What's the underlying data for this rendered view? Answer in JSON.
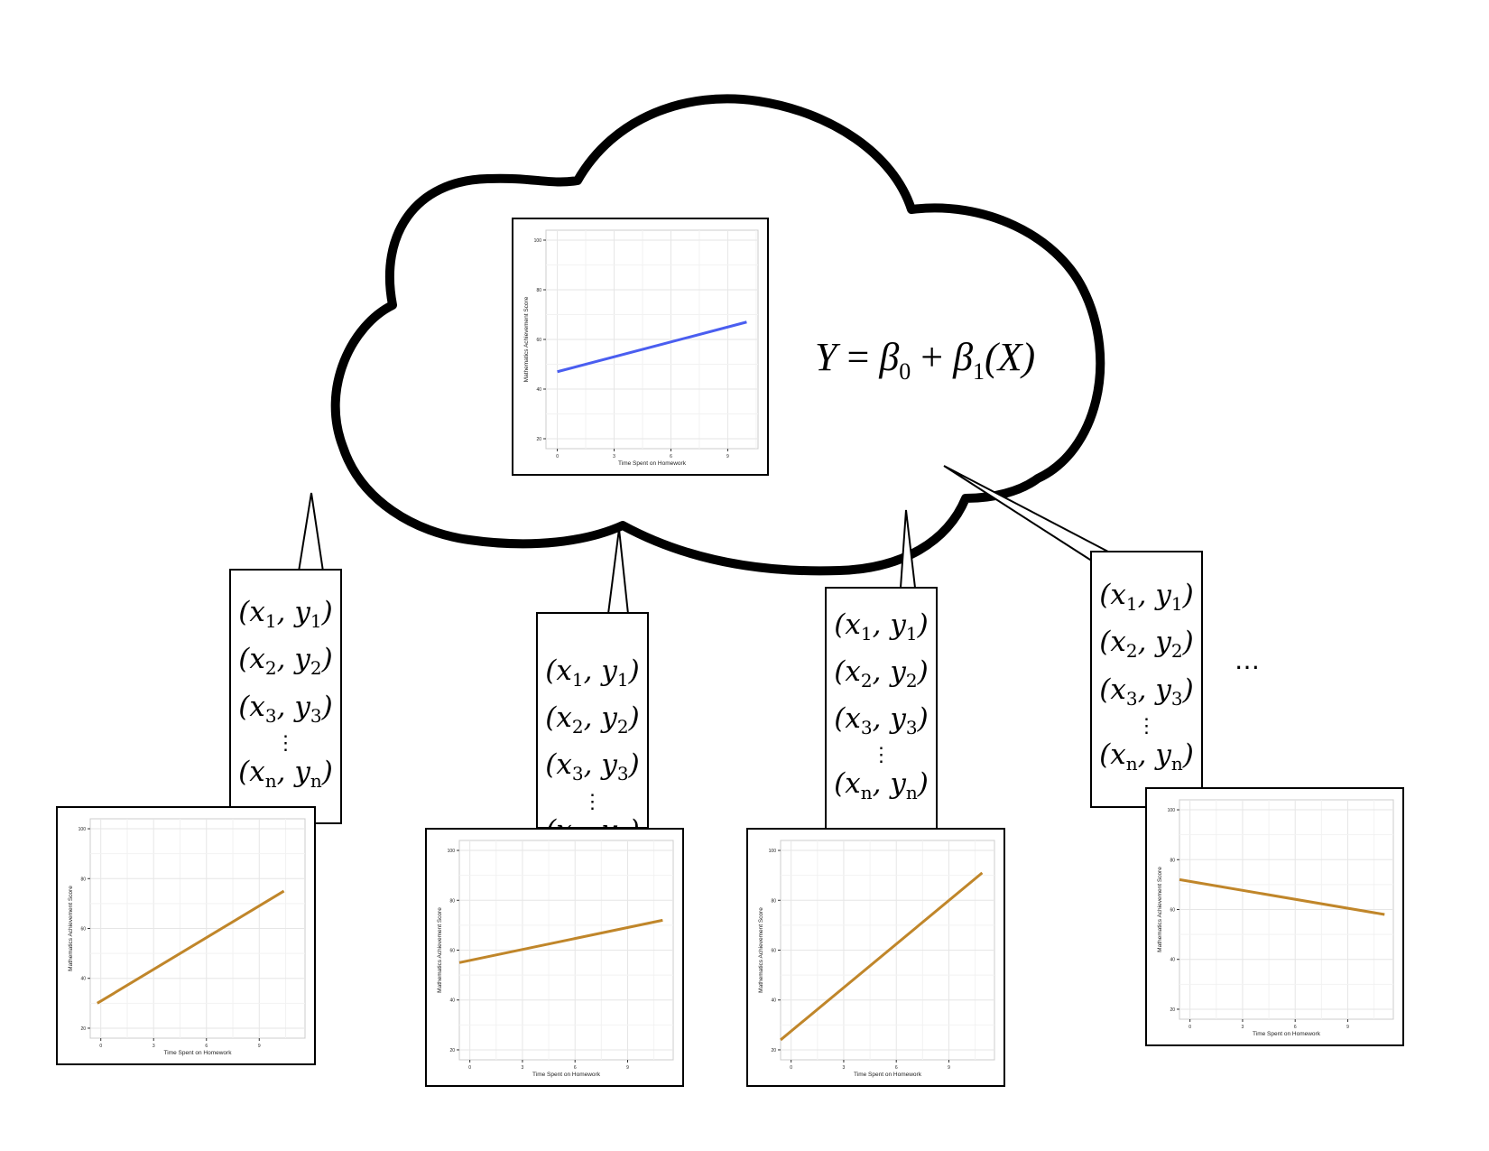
{
  "equation": {
    "lhs": "Y",
    "eq": "=",
    "b0": "β",
    "b0_sub": "0",
    "plus": "+",
    "b1": "β",
    "b1_sub": "1",
    "arg": "(X)"
  },
  "colors": {
    "population_line": "#4a5ef0",
    "sample_line": "#c0862a",
    "outline": "#000000",
    "grid": "#e6e6e6",
    "panel_border": "#cccccc"
  },
  "pairs": [
    {
      "x": "x",
      "xs": "1",
      "y": "y",
      "ys": "1"
    },
    {
      "x": "x",
      "xs": "2",
      "y": "y",
      "ys": "2"
    },
    {
      "x": "x",
      "xs": "3",
      "y": "y",
      "ys": "3"
    },
    {
      "x": "x",
      "xs": "n",
      "y": "y",
      "ys": "n"
    }
  ],
  "vdots": "⋮",
  "ellipsis": "…",
  "chart_data": [
    {
      "type": "line",
      "id": "population",
      "xlabel": "Time Spent on Homework",
      "ylabel": "Mathematics Achievement Score",
      "x_ticks": [
        0,
        3,
        6,
        9
      ],
      "y_ticks": [
        20,
        40,
        60,
        80,
        100
      ],
      "xlim": [
        -0.6,
        10.6
      ],
      "ylim": [
        16,
        104
      ],
      "series": [
        {
          "x": [
            0,
            10
          ],
          "y": [
            47,
            67
          ]
        }
      ]
    },
    {
      "type": "line",
      "id": "sample-1",
      "xlabel": "Time Spent on Homework",
      "ylabel": "Mathematics Achievement Score",
      "x_ticks": [
        0,
        3,
        6,
        9
      ],
      "y_ticks": [
        20,
        40,
        60,
        80,
        100
      ],
      "xlim": [
        -0.6,
        11.6
      ],
      "ylim": [
        16,
        104
      ],
      "series": [
        {
          "x": [
            -0.2,
            10.4
          ],
          "y": [
            30,
            75
          ]
        }
      ]
    },
    {
      "type": "line",
      "id": "sample-2",
      "xlabel": "Time Spent on Homework",
      "ylabel": "Mathematics Achievement Score",
      "x_ticks": [
        0,
        3,
        6,
        9
      ],
      "y_ticks": [
        20,
        40,
        60,
        80,
        100
      ],
      "xlim": [
        -0.6,
        11.6
      ],
      "ylim": [
        16,
        104
      ],
      "series": [
        {
          "x": [
            -0.6,
            11.0
          ],
          "y": [
            55,
            72
          ]
        }
      ]
    },
    {
      "type": "line",
      "id": "sample-3",
      "xlabel": "Time Spent on Homework",
      "ylabel": "Mathematics Achievement Score",
      "x_ticks": [
        0,
        3,
        6,
        9
      ],
      "y_ticks": [
        20,
        40,
        60,
        80,
        100
      ],
      "xlim": [
        -0.6,
        11.6
      ],
      "ylim": [
        16,
        104
      ],
      "series": [
        {
          "x": [
            -0.6,
            10.9
          ],
          "y": [
            24,
            91
          ]
        }
      ]
    },
    {
      "type": "line",
      "id": "sample-4",
      "xlabel": "Time Spent on Homework",
      "ylabel": "Mathematics Achievement Score",
      "x_ticks": [
        0,
        3,
        6,
        9
      ],
      "y_ticks": [
        20,
        40,
        60,
        80,
        100
      ],
      "xlim": [
        -0.6,
        11.6
      ],
      "ylim": [
        16,
        104
      ],
      "series": [
        {
          "x": [
            -0.6,
            11.1
          ],
          "y": [
            72,
            58
          ]
        }
      ]
    }
  ]
}
